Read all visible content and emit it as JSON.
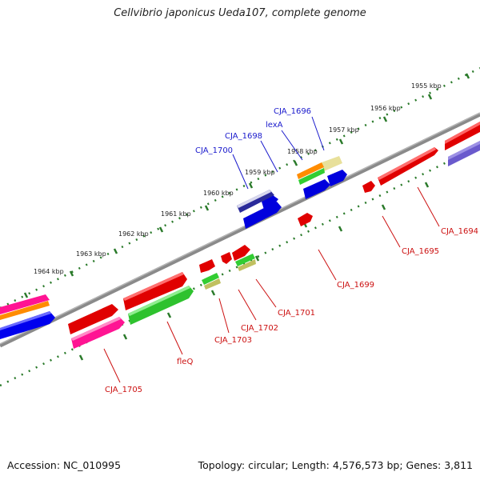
{
  "title": "Cellvibrio japonicus Ueda107, complete genome",
  "footer": {
    "accession": "Accession: NC_010995",
    "topology": "Topology: circular; Length: 4,576,573 bp; Genes: 3,811"
  },
  "scale_labels": [
    "1955 kbp",
    "1956 kbp",
    "1957 kbp",
    "1958 kbp",
    "1959 kbp",
    "1960 kbp",
    "1961 kbp",
    "1962 kbp",
    "1963 kbp",
    "1964 kbp"
  ],
  "gene_labels_top": [
    "CJA_1696",
    "lexA",
    "CJA_1698",
    "CJA_1700"
  ],
  "gene_labels_bottom": [
    "CJA_1694",
    "CJA_1695",
    "CJA_1699",
    "CJA_1701",
    "CJA_1702",
    "CJA_1703",
    "fleQ",
    "CJA_1705"
  ],
  "colors": {
    "label_top": "#1a1acc",
    "label_bottom": "#cc1111",
    "backbone": "#8a8a8a",
    "scale_dots": "#2a7a2a"
  }
}
